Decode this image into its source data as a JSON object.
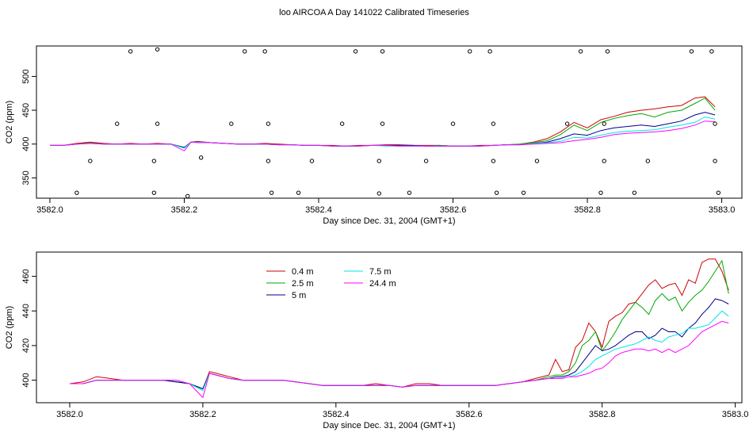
{
  "title": "loo AIRCOA A  Day 141022  Calibrated Timeseries",
  "chart_data": [
    {
      "type": "line",
      "xlabel": "Day since Dec. 31, 2004 (GMT+1)",
      "ylabel": "CO2 (ppm)",
      "xlim": [
        3581.98,
        3583.03
      ],
      "ylim": [
        320,
        545
      ],
      "xticks": [
        "3582.0",
        "3582.2",
        "3582.4",
        "3582.6",
        "3582.8",
        "3583.0"
      ],
      "yticks": [
        "350",
        "400",
        "450",
        "500"
      ],
      "grid": false,
      "x": [
        3582.0,
        3582.02,
        3582.04,
        3582.06,
        3582.08,
        3582.1,
        3582.12,
        3582.14,
        3582.16,
        3582.18,
        3582.2,
        3582.21,
        3582.22,
        3582.24,
        3582.26,
        3582.28,
        3582.3,
        3582.32,
        3582.34,
        3582.36,
        3582.38,
        3582.4,
        3582.42,
        3582.44,
        3582.46,
        3582.48,
        3582.5,
        3582.52,
        3582.54,
        3582.56,
        3582.58,
        3582.6,
        3582.62,
        3582.64,
        3582.66,
        3582.68,
        3582.7,
        3582.72,
        3582.74,
        3582.76,
        3582.78,
        3582.8,
        3582.82,
        3582.84,
        3582.86,
        3582.88,
        3582.9,
        3582.92,
        3582.94,
        3582.96,
        3582.975,
        3582.99
      ],
      "series": [
        {
          "color": "#cc0000",
          "values": [
            398,
            398,
            401,
            403,
            401,
            400,
            401,
            400,
            401,
            400,
            395,
            403,
            404,
            402,
            401,
            400,
            400,
            401,
            400,
            399,
            398,
            398,
            398,
            397,
            398,
            398,
            399,
            399,
            398,
            398,
            398,
            397,
            397,
            398,
            398,
            399,
            400,
            403,
            408,
            418,
            432,
            424,
            436,
            441,
            447,
            450,
            452,
            455,
            457,
            468,
            470,
            455
          ]
        },
        {
          "color": "#00aa00",
          "values": [
            398,
            398,
            400,
            402,
            400,
            400,
            400,
            400,
            400,
            400,
            395,
            403,
            403,
            402,
            401,
            400,
            400,
            400,
            399,
            399,
            398,
            398,
            397,
            397,
            397,
            398,
            398,
            398,
            398,
            397,
            398,
            397,
            397,
            397,
            398,
            399,
            400,
            402,
            405,
            414,
            428,
            420,
            432,
            438,
            442,
            445,
            440,
            447,
            450,
            460,
            468,
            450
          ]
        },
        {
          "color": "#00008b",
          "values": [
            398,
            398,
            400,
            401,
            400,
            400,
            400,
            400,
            400,
            400,
            395,
            403,
            403,
            402,
            401,
            400,
            400,
            400,
            399,
            399,
            398,
            398,
            397,
            397,
            397,
            398,
            398,
            398,
            398,
            397,
            397,
            397,
            397,
            397,
            398,
            399,
            399,
            401,
            403,
            408,
            415,
            413,
            420,
            424,
            426,
            428,
            426,
            430,
            434,
            443,
            447,
            443
          ]
        },
        {
          "color": "#00e5e5",
          "values": [
            398,
            398,
            400,
            401,
            400,
            400,
            400,
            400,
            400,
            400,
            394,
            403,
            403,
            402,
            401,
            400,
            400,
            400,
            399,
            399,
            398,
            398,
            397,
            397,
            397,
            398,
            397,
            397,
            397,
            397,
            397,
            397,
            397,
            397,
            398,
            399,
            399,
            401,
            402,
            404,
            410,
            409,
            413,
            417,
            419,
            420,
            421,
            425,
            428,
            432,
            440,
            437
          ]
        },
        {
          "color": "#ff00ff",
          "values": [
            398,
            398,
            400,
            401,
            400,
            400,
            400,
            400,
            400,
            400,
            390,
            403,
            402,
            402,
            401,
            400,
            400,
            400,
            399,
            399,
            398,
            398,
            397,
            397,
            397,
            398,
            398,
            397,
            397,
            397,
            397,
            397,
            397,
            397,
            398,
            399,
            399,
            400,
            401,
            402,
            405,
            407,
            410,
            414,
            416,
            417,
            418,
            420,
            423,
            428,
            434,
            433
          ]
        }
      ],
      "scatter_points": [
        {
          "x": 3582.04,
          "y": 328
        },
        {
          "x": 3582.06,
          "y": 375
        },
        {
          "x": 3582.1,
          "y": 430
        },
        {
          "x": 3582.12,
          "y": 537
        },
        {
          "x": 3582.155,
          "y": 328
        },
        {
          "x": 3582.155,
          "y": 375
        },
        {
          "x": 3582.16,
          "y": 430
        },
        {
          "x": 3582.16,
          "y": 540
        },
        {
          "x": 3582.205,
          "y": 323
        },
        {
          "x": 3582.225,
          "y": 380
        },
        {
          "x": 3582.27,
          "y": 430
        },
        {
          "x": 3582.29,
          "y": 537
        },
        {
          "x": 3582.32,
          "y": 537
        },
        {
          "x": 3582.325,
          "y": 430
        },
        {
          "x": 3582.325,
          "y": 375
        },
        {
          "x": 3582.33,
          "y": 328
        },
        {
          "x": 3582.37,
          "y": 328
        },
        {
          "x": 3582.39,
          "y": 375
        },
        {
          "x": 3582.435,
          "y": 430
        },
        {
          "x": 3582.455,
          "y": 537
        },
        {
          "x": 3582.49,
          "y": 327
        },
        {
          "x": 3582.49,
          "y": 375
        },
        {
          "x": 3582.495,
          "y": 430
        },
        {
          "x": 3582.495,
          "y": 537
        },
        {
          "x": 3582.535,
          "y": 328
        },
        {
          "x": 3582.56,
          "y": 375
        },
        {
          "x": 3582.6,
          "y": 430
        },
        {
          "x": 3582.625,
          "y": 537
        },
        {
          "x": 3582.655,
          "y": 537
        },
        {
          "x": 3582.66,
          "y": 430
        },
        {
          "x": 3582.66,
          "y": 375
        },
        {
          "x": 3582.665,
          "y": 328
        },
        {
          "x": 3582.705,
          "y": 328
        },
        {
          "x": 3582.725,
          "y": 375
        },
        {
          "x": 3582.77,
          "y": 430
        },
        {
          "x": 3582.79,
          "y": 537
        },
        {
          "x": 3582.82,
          "y": 328
        },
        {
          "x": 3582.825,
          "y": 375
        },
        {
          "x": 3582.825,
          "y": 430
        },
        {
          "x": 3582.83,
          "y": 537
        },
        {
          "x": 3582.87,
          "y": 328
        },
        {
          "x": 3582.89,
          "y": 375
        },
        {
          "x": 3582.955,
          "y": 537
        },
        {
          "x": 3582.985,
          "y": 537
        },
        {
          "x": 3582.99,
          "y": 430
        },
        {
          "x": 3582.99,
          "y": 375
        },
        {
          "x": 3582.995,
          "y": 328
        }
      ]
    },
    {
      "type": "line",
      "xlabel": "Day since Dec. 31, 2004 (GMT+1)",
      "ylabel": "CO2 (ppm)",
      "xlim": [
        3581.95,
        3583.01
      ],
      "ylim": [
        387,
        474
      ],
      "xticks": [
        "3582.0",
        "3582.2",
        "3582.4",
        "3582.6",
        "3582.8",
        "3583.0"
      ],
      "yticks": [
        "400",
        "420",
        "440",
        "460"
      ],
      "grid": false,
      "legend_placement": "top-center",
      "x": [
        3582.0,
        3582.02,
        3582.04,
        3582.06,
        3582.08,
        3582.1,
        3582.12,
        3582.14,
        3582.16,
        3582.18,
        3582.2,
        3582.21,
        3582.22,
        3582.24,
        3582.26,
        3582.28,
        3582.3,
        3582.32,
        3582.34,
        3582.36,
        3582.38,
        3582.4,
        3582.42,
        3582.44,
        3582.46,
        3582.48,
        3582.5,
        3582.52,
        3582.54,
        3582.56,
        3582.58,
        3582.6,
        3582.62,
        3582.64,
        3582.66,
        3582.68,
        3582.7,
        3582.72,
        3582.73,
        3582.74,
        3582.75,
        3582.76,
        3582.77,
        3582.78,
        3582.79,
        3582.8,
        3582.81,
        3582.82,
        3582.83,
        3582.84,
        3582.85,
        3582.86,
        3582.87,
        3582.88,
        3582.89,
        3582.9,
        3582.91,
        3582.92,
        3582.93,
        3582.94,
        3582.95,
        3582.96,
        3582.97,
        3582.98,
        3582.99
      ],
      "series": [
        {
          "name": "0.4 m",
          "color": "#cc0000",
          "values": [
            398,
            399,
            402,
            401,
            400,
            400,
            400,
            400,
            399,
            398,
            395,
            405,
            404,
            402,
            400,
            400,
            400,
            400,
            399,
            398,
            397,
            397,
            397,
            397,
            398,
            397,
            396,
            398,
            398,
            397,
            397,
            397,
            397,
            397,
            398,
            399,
            401,
            403,
            412,
            405,
            406,
            419,
            423,
            433,
            428,
            419,
            434,
            437,
            439,
            444,
            445,
            450,
            455,
            458,
            453,
            455,
            456,
            449,
            458,
            456,
            468,
            470,
            470,
            463,
            452
          ]
        },
        {
          "name": "2.5 m",
          "color": "#00aa00",
          "values": [
            398,
            398,
            400,
            400,
            400,
            400,
            400,
            400,
            399,
            398,
            395,
            404,
            403,
            401,
            400,
            400,
            400,
            400,
            399,
            398,
            397,
            397,
            397,
            397,
            397,
            397,
            396,
            397,
            397,
            397,
            397,
            397,
            397,
            397,
            398,
            399,
            400,
            402,
            403,
            403,
            405,
            410,
            420,
            423,
            428,
            417,
            422,
            428,
            435,
            440,
            445,
            442,
            438,
            446,
            450,
            446,
            448,
            440,
            445,
            449,
            452,
            457,
            463,
            469,
            450
          ]
        },
        {
          "name": "5 m",
          "color": "#00008b",
          "values": [
            398,
            398,
            400,
            400,
            400,
            400,
            400,
            400,
            399,
            398,
            395,
            404,
            403,
            401,
            400,
            400,
            400,
            400,
            399,
            398,
            397,
            397,
            397,
            397,
            397,
            397,
            396,
            397,
            397,
            397,
            397,
            397,
            397,
            397,
            398,
            399,
            400,
            401,
            402,
            402,
            403,
            405,
            410,
            415,
            420,
            417,
            418,
            420,
            423,
            426,
            428,
            428,
            424,
            426,
            430,
            428,
            428,
            425,
            430,
            433,
            438,
            442,
            447,
            446,
            444
          ]
        },
        {
          "name": "7.5 m",
          "color": "#00e5e5",
          "values": [
            398,
            398,
            400,
            400,
            400,
            400,
            400,
            400,
            400,
            398,
            394,
            404,
            403,
            401,
            400,
            400,
            400,
            400,
            399,
            398,
            397,
            397,
            397,
            397,
            397,
            397,
            396,
            397,
            397,
            397,
            397,
            397,
            397,
            397,
            398,
            399,
            400,
            401,
            401,
            401,
            402,
            403,
            405,
            408,
            412,
            414,
            416,
            418,
            419,
            420,
            421,
            423,
            425,
            423,
            422,
            425,
            426,
            427,
            430,
            430,
            431,
            432,
            436,
            440,
            437
          ]
        },
        {
          "name": "24.4 m",
          "color": "#ff00ff",
          "values": [
            398,
            398,
            400,
            400,
            400,
            400,
            400,
            400,
            400,
            398,
            390,
            404,
            403,
            401,
            400,
            400,
            400,
            400,
            399,
            398,
            397,
            397,
            397,
            397,
            397,
            397,
            396,
            397,
            397,
            397,
            397,
            397,
            397,
            397,
            398,
            399,
            400,
            401,
            401,
            401,
            402,
            402,
            403,
            404,
            406,
            407,
            410,
            414,
            416,
            417,
            418,
            418,
            417,
            418,
            416,
            418,
            416,
            418,
            420,
            424,
            428,
            430,
            432,
            434,
            433
          ]
        }
      ]
    }
  ]
}
